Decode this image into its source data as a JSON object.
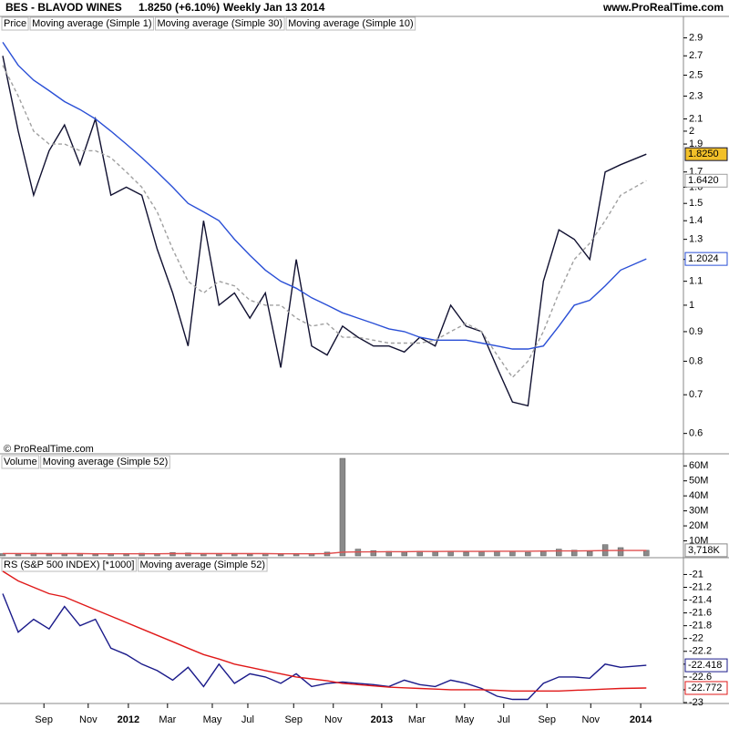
{
  "header": {
    "symbol": "BES - BLAVOD WINES",
    "change": "1.8250 (+6.10%)",
    "period": "Weekly",
    "date": "Jan 13 2014",
    "site": "www.ProRealTime.com",
    "copyright": "© ProRealTime.com"
  },
  "chart_data": [
    {
      "type": "line",
      "label": "Price",
      "log_scale": true,
      "x": [
        0,
        3,
        6,
        9,
        12,
        15,
        18,
        21,
        24,
        27,
        30,
        33,
        36,
        39,
        42,
        45,
        48,
        51,
        54,
        57,
        60,
        63,
        66,
        69,
        72,
        75,
        78,
        81,
        84,
        87,
        90,
        93,
        96,
        99,
        102,
        105,
        108,
        111,
        114,
        117,
        120,
        125
      ],
      "xlim": [
        0,
        132.2
      ],
      "ylim": [
        0.58,
        2.97
      ],
      "yticks": [
        2.9,
        2.7,
        2.5,
        2.3,
        2.1,
        2,
        1.9,
        1.7,
        1.6,
        1.5,
        1.4,
        1.3,
        1.2,
        1.1,
        1,
        0.9,
        0.8,
        0.7,
        0.6
      ],
      "series": [
        {
          "name": "Moving average (Simple 1)",
          "color": "#101030",
          "last_value_label": "1.8250",
          "label_fill": "#f2c029",
          "values": [
            2.7,
            2.0,
            1.55,
            1.85,
            2.05,
            1.75,
            2.1,
            1.55,
            1.6,
            1.55,
            1.25,
            1.05,
            0.85,
            1.4,
            1.0,
            1.05,
            0.95,
            1.05,
            0.78,
            1.2,
            0.85,
            0.82,
            0.92,
            0.88,
            0.85,
            0.85,
            0.83,
            0.88,
            0.85,
            1.0,
            0.92,
            0.9,
            0.78,
            0.68,
            0.67,
            1.1,
            1.35,
            1.3,
            1.2,
            1.7,
            1.75,
            1.825
          ]
        },
        {
          "name": "Moving average (Simple 30)",
          "color": "#2a4fd6",
          "last_value_label": "1.2024",
          "values": [
            2.85,
            2.6,
            2.45,
            2.35,
            2.25,
            2.18,
            2.1,
            2.0,
            1.9,
            1.8,
            1.7,
            1.6,
            1.5,
            1.45,
            1.4,
            1.3,
            1.22,
            1.15,
            1.1,
            1.07,
            1.03,
            1.0,
            0.97,
            0.95,
            0.93,
            0.91,
            0.9,
            0.88,
            0.87,
            0.87,
            0.87,
            0.86,
            0.85,
            0.84,
            0.84,
            0.85,
            0.92,
            1.0,
            1.02,
            1.08,
            1.15,
            1.2024
          ]
        },
        {
          "name": "Moving average (Simple 10)",
          "color": "#a0a0a0",
          "dash": true,
          "last_value_label": "1.6420",
          "values": [
            2.6,
            2.3,
            2.0,
            1.9,
            1.9,
            1.85,
            1.85,
            1.8,
            1.7,
            1.6,
            1.45,
            1.25,
            1.1,
            1.05,
            1.1,
            1.08,
            1.02,
            1.0,
            1.0,
            0.95,
            0.92,
            0.93,
            0.88,
            0.88,
            0.87,
            0.86,
            0.86,
            0.86,
            0.87,
            0.9,
            0.93,
            0.9,
            0.82,
            0.75,
            0.8,
            0.9,
            1.05,
            1.2,
            1.28,
            1.4,
            1.55,
            1.642
          ]
        }
      ]
    },
    {
      "type": "bar",
      "x": [
        0,
        3,
        6,
        9,
        12,
        15,
        18,
        21,
        24,
        27,
        30,
        33,
        36,
        39,
        42,
        45,
        48,
        51,
        54,
        57,
        60,
        63,
        66,
        69,
        72,
        75,
        78,
        81,
        84,
        87,
        90,
        93,
        96,
        99,
        102,
        105,
        108,
        111,
        114,
        117,
        120,
        125
      ],
      "xlim": [
        0,
        132.2
      ],
      "ylim": [
        0,
        65
      ],
      "yticks": [
        {
          "value": 60,
          "label": "60M"
        },
        {
          "value": 50,
          "label": "50M"
        },
        {
          "value": 40,
          "label": "40M"
        },
        {
          "value": 30,
          "label": "30M"
        },
        {
          "value": 20,
          "label": "20M"
        },
        {
          "value": 10,
          "label": "10M"
        }
      ],
      "series": [
        {
          "name": "Volume",
          "kind": "bar",
          "color": "#8a8a8a",
          "last_value_label": "3,718K",
          "values": [
            1.5,
            1.2,
            1.8,
            1.0,
            1.3,
            1.6,
            1.1,
            1.4,
            1.2,
            1.8,
            1.5,
            2.2,
            2.0,
            1.4,
            1.6,
            1.3,
            1.2,
            1.5,
            1.1,
            1.3,
            1.4,
            2.5,
            65,
            4.5,
            3.5,
            3.0,
            2.8,
            3.2,
            2.6,
            3.0,
            2.5,
            2.8,
            3.2,
            2.9,
            2.4,
            3.5,
            4.5,
            3.8,
            3.0,
            7.5,
            5.5,
            3.718
          ]
        },
        {
          "name": "Moving average (Simple 52)",
          "kind": "line",
          "color": "#e05050",
          "values": [
            1.6,
            1.6,
            1.5,
            1.5,
            1.5,
            1.5,
            1.4,
            1.4,
            1.4,
            1.4,
            1.4,
            1.5,
            1.5,
            1.5,
            1.5,
            1.5,
            1.5,
            1.5,
            1.4,
            1.4,
            1.4,
            1.5,
            2.5,
            2.6,
            2.7,
            2.8,
            2.8,
            2.9,
            2.9,
            3.0,
            3.0,
            3.0,
            3.1,
            3.1,
            3.1,
            3.2,
            3.3,
            3.3,
            3.4,
            3.5,
            3.6,
            3.6
          ]
        }
      ]
    },
    {
      "type": "line",
      "x": [
        0,
        3,
        6,
        9,
        12,
        15,
        18,
        21,
        24,
        27,
        30,
        33,
        36,
        39,
        42,
        45,
        48,
        51,
        54,
        57,
        60,
        63,
        66,
        69,
        72,
        75,
        78,
        81,
        84,
        87,
        90,
        93,
        96,
        99,
        102,
        105,
        108,
        111,
        114,
        117,
        120,
        125
      ],
      "xlim": [
        0,
        132.2
      ],
      "ylim": [
        -23.0,
        -20.88
      ],
      "yticks": [
        -21,
        -21.2,
        -21.4,
        -21.6,
        -21.8,
        -22,
        -22.2,
        -22.4,
        -22.6,
        -22.8,
        -23
      ],
      "xticks": [
        {
          "value": 8,
          "label": "Sep"
        },
        {
          "value": 16.6,
          "label": "Nov"
        },
        {
          "value": 24.4,
          "label": "2012"
        },
        {
          "value": 32,
          "label": "Mar"
        },
        {
          "value": 40.7,
          "label": "May"
        },
        {
          "value": 47.6,
          "label": "Jul"
        },
        {
          "value": 56.5,
          "label": "Sep"
        },
        {
          "value": 64.2,
          "label": "Nov"
        },
        {
          "value": 73.6,
          "label": "2013"
        },
        {
          "value": 80.4,
          "label": "Mar"
        },
        {
          "value": 89.7,
          "label": "May"
        },
        {
          "value": 97.3,
          "label": "Jul"
        },
        {
          "value": 105.7,
          "label": "Sep"
        },
        {
          "value": 114.2,
          "label": "Nov"
        },
        {
          "value": 123.9,
          "label": "2014"
        }
      ],
      "series": [
        {
          "name": "RS (S&P 500 INDEX) [*1000]",
          "color": "#1a1a8a",
          "last_value_label": "-22.418",
          "values": [
            -21.3,
            -21.9,
            -21.7,
            -21.85,
            -21.5,
            -21.8,
            -21.7,
            -22.15,
            -22.25,
            -22.4,
            -22.5,
            -22.65,
            -22.45,
            -22.75,
            -22.4,
            -22.7,
            -22.55,
            -22.6,
            -22.7,
            -22.55,
            -22.75,
            -22.7,
            -22.68,
            -22.7,
            -22.72,
            -22.75,
            -22.65,
            -22.72,
            -22.75,
            -22.65,
            -22.7,
            -22.78,
            -22.9,
            -22.95,
            -22.95,
            -22.7,
            -22.6,
            -22.6,
            -22.62,
            -22.4,
            -22.45,
            -22.418
          ]
        },
        {
          "name": "Moving average (Simple 52)",
          "color": "#e01818",
          "last_value_label": "-22.772",
          "values": [
            -20.95,
            -21.1,
            -21.2,
            -21.3,
            -21.35,
            -21.45,
            -21.55,
            -21.65,
            -21.75,
            -21.85,
            -21.95,
            -22.05,
            -22.15,
            -22.25,
            -22.32,
            -22.4,
            -22.45,
            -22.5,
            -22.55,
            -22.6,
            -22.63,
            -22.66,
            -22.7,
            -22.72,
            -22.74,
            -22.76,
            -22.77,
            -22.78,
            -22.79,
            -22.8,
            -22.8,
            -22.8,
            -22.81,
            -22.82,
            -22.82,
            -22.82,
            -22.82,
            -22.81,
            -22.8,
            -22.79,
            -22.78,
            -22.772
          ]
        }
      ]
    }
  ]
}
